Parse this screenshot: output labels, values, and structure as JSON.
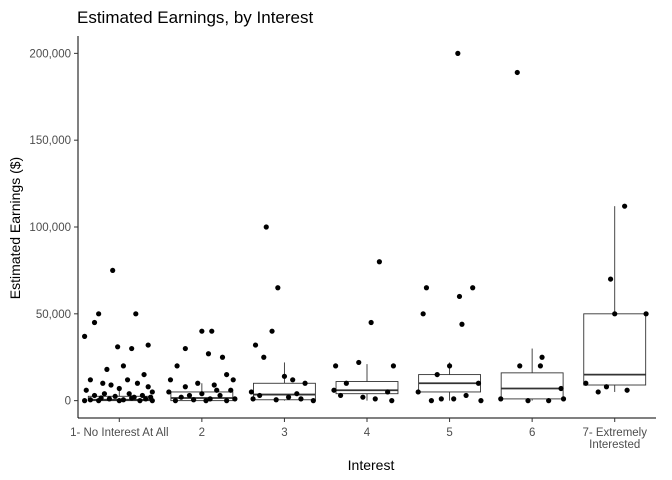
{
  "chart_data": {
    "type": "boxplot",
    "title": "Estimated Earnings, by Interest",
    "xlabel": "Interest",
    "ylabel": "Estimated Earnings ($)",
    "ylim": [
      -10000,
      210000
    ],
    "yticks": [
      0,
      50000,
      100000,
      150000,
      200000
    ],
    "ytick_labels": [
      "0",
      "50,000",
      "100,000",
      "150,000",
      "200,000"
    ],
    "grid": false,
    "categories": [
      [
        "1- No Interest At All"
      ],
      [
        "2"
      ],
      [
        "3"
      ],
      [
        "4"
      ],
      [
        "5"
      ],
      [
        "6"
      ],
      [
        "7- Extremely",
        "Interested"
      ]
    ],
    "boxes": [
      {
        "q1": 0,
        "median": 500,
        "q3": 2500,
        "whisker_low": 0,
        "whisker_high": 6000
      },
      {
        "q1": 0,
        "median": 1500,
        "q3": 5000,
        "whisker_low": 0,
        "whisker_high": 10000
      },
      {
        "q1": 500,
        "median": 3500,
        "q3": 10000,
        "whisker_low": 0,
        "whisker_high": 22000
      },
      {
        "q1": 4000,
        "median": 6000,
        "q3": 11000,
        "whisker_low": 0,
        "whisker_high": 21000
      },
      {
        "q1": 5000,
        "median": 10000,
        "q3": 15000,
        "whisker_low": 0,
        "whisker_high": 22000
      },
      {
        "q1": 1000,
        "median": 7000,
        "q3": 16000,
        "whisker_low": 0,
        "whisker_high": 30000
      },
      {
        "q1": 9000,
        "median": 15000,
        "q3": 50000,
        "whisker_low": 5000,
        "whisker_high": 112000
      }
    ],
    "points": [
      [
        [
          -0.42,
          37000
        ],
        [
          -0.3,
          45000
        ],
        [
          -0.25,
          50000
        ],
        [
          -0.08,
          75000
        ],
        [
          0.2,
          50000
        ],
        [
          0.35,
          32000
        ],
        [
          0.15,
          30000
        ],
        [
          -0.15,
          18000
        ],
        [
          0.05,
          20000
        ],
        [
          -0.02,
          31000
        ],
        [
          0.3,
          15000
        ],
        [
          -0.35,
          12000
        ],
        [
          0.1,
          12000
        ],
        [
          -0.2,
          10000
        ],
        [
          0.22,
          10000
        ],
        [
          -0.1,
          9000
        ],
        [
          0.35,
          8000
        ],
        [
          0.4,
          5000
        ],
        [
          -0.4,
          6000
        ],
        [
          0.0,
          7000
        ],
        [
          0.28,
          3000
        ],
        [
          -0.3,
          3000
        ],
        [
          0.12,
          4000
        ],
        [
          -0.05,
          2500
        ],
        [
          0.18,
          2000
        ],
        [
          -0.22,
          1500
        ],
        [
          0.32,
          1000
        ],
        [
          -0.12,
          1000
        ],
        [
          0.05,
          500
        ],
        [
          -0.35,
          500
        ],
        [
          0.25,
          0
        ],
        [
          -0.25,
          0
        ],
        [
          0.0,
          0
        ],
        [
          0.4,
          0
        ],
        [
          -0.42,
          0
        ],
        [
          0.15,
          1500
        ],
        [
          -0.18,
          4000
        ],
        [
          0.38,
          2000
        ]
      ],
      [
        [
          -0.3,
          20000
        ],
        [
          -0.2,
          30000
        ],
        [
          0.0,
          40000
        ],
        [
          0.12,
          40000
        ],
        [
          0.08,
          27000
        ],
        [
          0.25,
          25000
        ],
        [
          -0.38,
          12000
        ],
        [
          0.3,
          15000
        ],
        [
          0.38,
          12000
        ],
        [
          -0.05,
          10000
        ],
        [
          0.15,
          9000
        ],
        [
          -0.2,
          8000
        ],
        [
          0.35,
          6000
        ],
        [
          -0.4,
          5000
        ],
        [
          0.0,
          4000
        ],
        [
          0.22,
          3000
        ],
        [
          -0.25,
          2000
        ],
        [
          0.1,
          1000
        ],
        [
          -0.1,
          500
        ],
        [
          0.3,
          0
        ],
        [
          -0.32,
          0
        ],
        [
          0.05,
          0
        ],
        [
          0.4,
          1000
        ],
        [
          -0.15,
          3000
        ],
        [
          0.18,
          6000
        ]
      ],
      [
        [
          -0.35,
          32000
        ],
        [
          -0.25,
          25000
        ],
        [
          -0.22,
          100000
        ],
        [
          -0.08,
          65000
        ],
        [
          -0.15,
          40000
        ],
        [
          0.0,
          14000
        ],
        [
          0.1,
          12000
        ],
        [
          -0.4,
          5000
        ],
        [
          0.25,
          10000
        ],
        [
          -0.3,
          3000
        ],
        [
          0.05,
          2000
        ],
        [
          0.2,
          1000
        ],
        [
          -0.1,
          500
        ],
        [
          0.35,
          0
        ],
        [
          -0.38,
          1000
        ],
        [
          0.15,
          4000
        ]
      ],
      [
        [
          -0.38,
          20000
        ],
        [
          -0.1,
          22000
        ],
        [
          0.05,
          45000
        ],
        [
          0.15,
          80000
        ],
        [
          0.32,
          20000
        ],
        [
          -0.25,
          10000
        ],
        [
          0.25,
          5000
        ],
        [
          -0.32,
          3000
        ],
        [
          0.1,
          1000
        ],
        [
          -0.05,
          2000
        ],
        [
          0.3,
          0
        ],
        [
          -0.4,
          6000
        ]
      ],
      [
        [
          -0.32,
          50000
        ],
        [
          -0.28,
          65000
        ],
        [
          0.1,
          200000
        ],
        [
          0.12,
          60000
        ],
        [
          0.15,
          44000
        ],
        [
          0.28,
          65000
        ],
        [
          0.0,
          20000
        ],
        [
          -0.15,
          15000
        ],
        [
          0.35,
          10000
        ],
        [
          -0.38,
          5000
        ],
        [
          0.2,
          3000
        ],
        [
          -0.1,
          1000
        ],
        [
          0.38,
          0
        ],
        [
          -0.22,
          0
        ],
        [
          0.05,
          1000
        ]
      ],
      [
        [
          -0.15,
          20000
        ],
        [
          -0.18,
          189000
        ],
        [
          0.12,
          25000
        ],
        [
          0.1,
          20000
        ],
        [
          0.35,
          7000
        ],
        [
          -0.38,
          1000
        ],
        [
          0.2,
          0
        ],
        [
          -0.05,
          0
        ],
        [
          0.38,
          1000
        ]
      ],
      [
        [
          -0.35,
          10000
        ],
        [
          -0.05,
          70000
        ],
        [
          0.0,
          50000
        ],
        [
          0.12,
          112000
        ],
        [
          0.38,
          50000
        ],
        [
          -0.2,
          5000
        ],
        [
          0.15,
          6000
        ],
        [
          -0.1,
          8000
        ]
      ]
    ]
  }
}
